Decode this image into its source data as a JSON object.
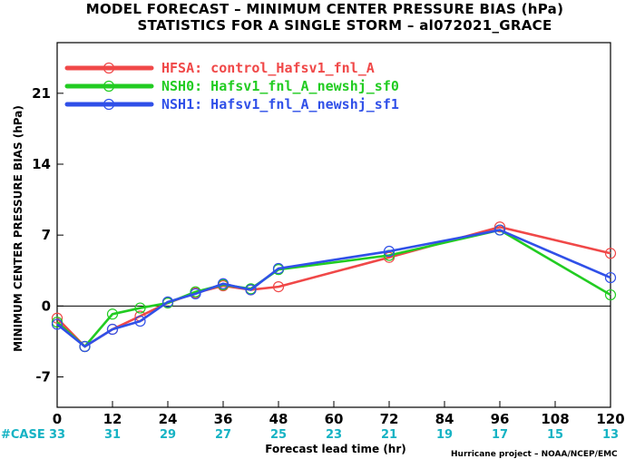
{
  "title_line1": "MODEL FORECAST – MINIMUM CENTER PRESSURE BIAS (hPa)",
  "title_line2": "STATISTICS FOR A SINGLE STORM – al072021_GRACE",
  "credit": "Hurricane project – NOAA/NCEP/EMC",
  "case_label": "#CASE",
  "chart_data": {
    "type": "line",
    "xlabel": "Forecast lead time (hr)",
    "ylabel": "MINIMUM CENTER PRESSURE BIAS (hPa)",
    "xlim": [
      0,
      120
    ],
    "ylim": [
      -10,
      26
    ],
    "x_ticks": [
      0,
      12,
      24,
      36,
      48,
      60,
      72,
      84,
      96,
      108,
      120
    ],
    "y_ticks": [
      -7,
      0,
      7,
      14,
      21
    ],
    "case_counts": [
      33,
      31,
      29,
      27,
      25,
      23,
      21,
      19,
      17,
      15,
      13
    ],
    "zero_line": true,
    "grid": false,
    "legend_position": "top-left",
    "series": [
      {
        "name": "HFSA: control_Hafsv1_fnl_A",
        "color": "#f04848",
        "x": [
          0,
          6,
          12,
          18,
          24,
          30,
          36,
          42,
          48,
          72,
          96,
          120
        ],
        "y": [
          -1.2,
          -4.0,
          -2.3,
          -1.0,
          0.3,
          1.3,
          2.0,
          1.6,
          1.9,
          4.8,
          7.8,
          5.2
        ]
      },
      {
        "name": "NSH0: Hafsv1_fnl_A_newshj_sf0",
        "color": "#22cc22",
        "x": [
          0,
          6,
          12,
          18,
          24,
          30,
          36,
          42,
          48,
          72,
          96,
          120
        ],
        "y": [
          -1.6,
          -4.0,
          -0.8,
          -0.2,
          0.3,
          1.4,
          2.1,
          1.7,
          3.6,
          5.0,
          7.5,
          1.1
        ]
      },
      {
        "name": "NSH1: Hafsv1_fnl_A_newshj_sf1",
        "color": "#3050e8",
        "x": [
          0,
          6,
          12,
          18,
          24,
          30,
          36,
          42,
          48,
          72,
          96,
          120
        ],
        "y": [
          -1.8,
          -4.0,
          -2.3,
          -1.5,
          0.4,
          1.2,
          2.2,
          1.6,
          3.7,
          5.4,
          7.5,
          2.8
        ]
      }
    ]
  }
}
